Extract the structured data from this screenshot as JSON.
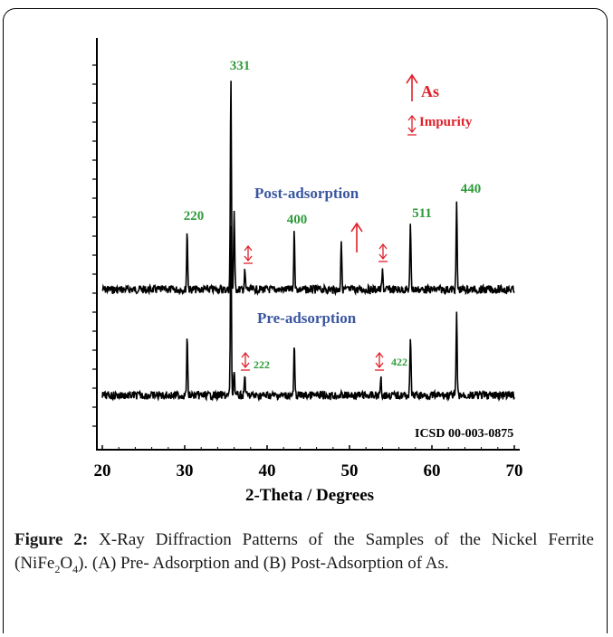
{
  "chart_data": {
    "type": "line",
    "xlabel": "2-Theta / Degrees",
    "x_ticks": [
      20,
      30,
      40,
      50,
      60,
      70
    ],
    "xlim": [
      20,
      70
    ],
    "series": [
      {
        "name": "Post-adsorption",
        "baseline": 320,
        "peaks": [
          {
            "x": 30.3,
            "h": 65
          },
          {
            "x": 35.6,
            "h": 235
          },
          {
            "x": 36.0,
            "h": 88
          },
          {
            "x": 37.3,
            "h": 20
          },
          {
            "x": 43.3,
            "h": 65
          },
          {
            "x": 49.0,
            "h": 55
          },
          {
            "x": 54.0,
            "h": 20
          },
          {
            "x": 57.4,
            "h": 72
          },
          {
            "x": 63.0,
            "h": 95
          }
        ]
      },
      {
        "name": "Pre-adsorption",
        "baseline": 437,
        "peaks": [
          {
            "x": 30.3,
            "h": 63
          },
          {
            "x": 35.6,
            "h": 188
          },
          {
            "x": 36.0,
            "h": 30
          },
          {
            "x": 37.3,
            "h": 23
          },
          {
            "x": 43.3,
            "h": 53
          },
          {
            "x": 53.8,
            "h": 22
          },
          {
            "x": 57.4,
            "h": 65
          },
          {
            "x": 63.0,
            "h": 90
          }
        ]
      }
    ],
    "peak_labels": [
      {
        "text": "220",
        "x": 30.3
      },
      {
        "text": "331",
        "x": 35.6
      },
      {
        "text": "400",
        "x": 43.3
      },
      {
        "text": "511",
        "x": 57.4
      },
      {
        "text": "440",
        "x": 63.0
      },
      {
        "text": "222",
        "x": 38.9
      },
      {
        "text": "422",
        "x": 55.0
      }
    ],
    "legend": {
      "as": "As",
      "impurity": "Impurity"
    },
    "reference": "ICSD 00-003-0875",
    "colors": {
      "hkl": "#2e9b3a",
      "marker": "#e0202a",
      "series_label": "#3a56a0",
      "trace": "#000000"
    }
  },
  "caption": {
    "label": "Figure 2:",
    "text_a": " X-Ray Diffraction Patterns of the Samples of the Nickel Ferrite (NiFe",
    "sub1": "2",
    "text_b": "O",
    "sub2": "4",
    "text_c": "). (A) Pre- Adsorption and (B) Post-Adsorption of As."
  }
}
